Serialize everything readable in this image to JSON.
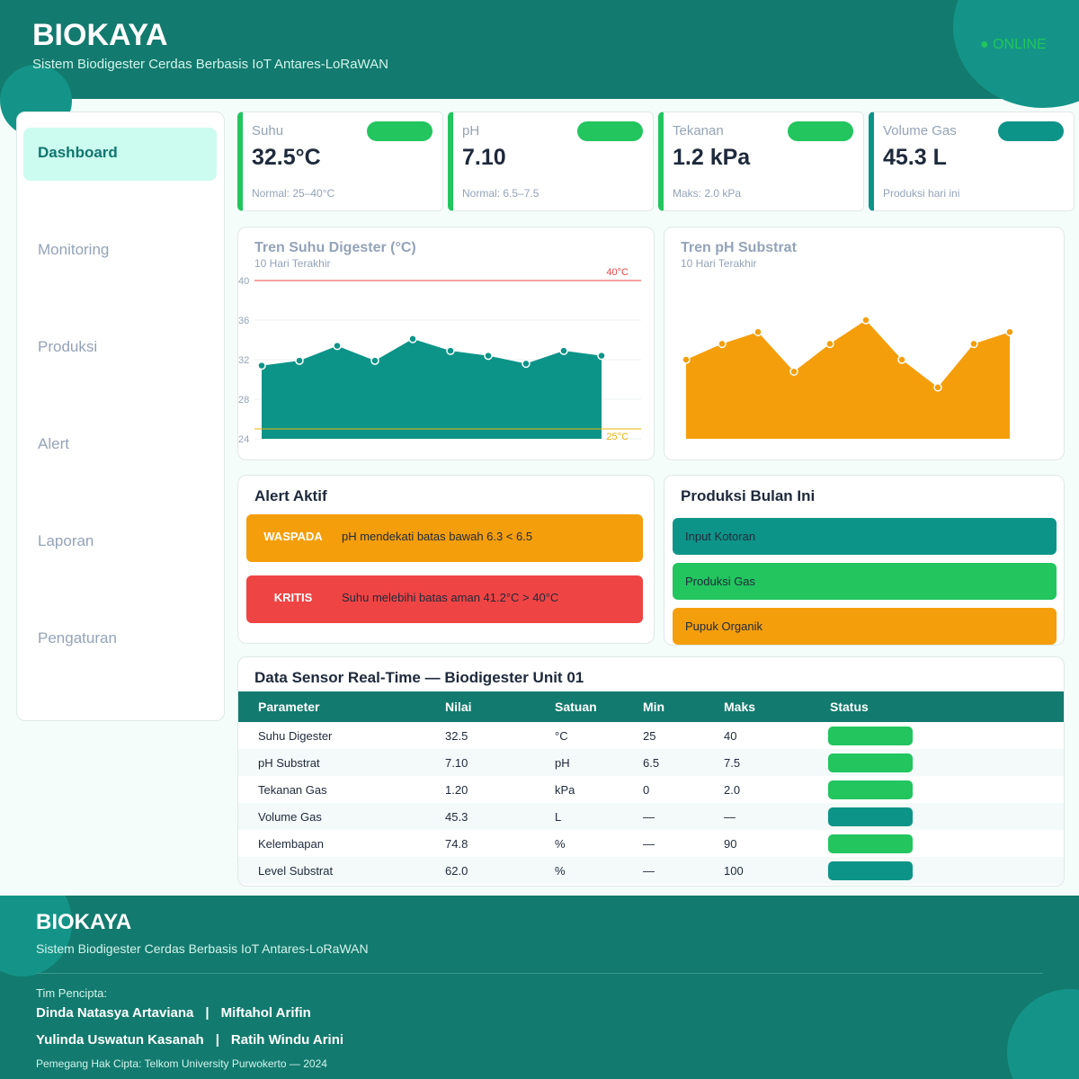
{
  "header": {
    "title": "BIOKAYA",
    "subtitle": "Sistem Biodigester Cerdas Berbasis IoT Antares-LoRaWAN",
    "status": "● ONLINE"
  },
  "sidebar": {
    "items": [
      "Dashboard",
      "Monitoring",
      "Produksi",
      "Alert",
      "Laporan",
      "Pengaturan"
    ]
  },
  "cards": [
    {
      "label": "Suhu",
      "value": "32.5°C",
      "note": "Normal: 25–40°C",
      "color": "#22c55e"
    },
    {
      "label": "pH",
      "value": "7.10",
      "note": "Normal: 6.5–7.5",
      "color": "#22c55e"
    },
    {
      "label": "Tekanan",
      "value": "1.2 kPa",
      "note": "Maks: 2.0 kPa",
      "color": "#22c55e"
    },
    {
      "label": "Volume Gas",
      "value": "45.3 L",
      "note": "Produksi hari ini",
      "color": "#0d9488"
    }
  ],
  "chart_data": [
    {
      "type": "area",
      "title": "Tren Suhu Digester (°C)",
      "subtitle": "10 Hari Terakhir",
      "categories": [
        null,
        null,
        null,
        null,
        null,
        null,
        null,
        null,
        null,
        null
      ],
      "values": [
        31.4,
        31.9,
        33.4,
        31.9,
        34.1,
        32.9,
        32.4,
        31.6,
        32.9,
        32.4
      ],
      "color": "#0d9488",
      "ylim": [
        24,
        40
      ],
      "yticks": [
        24,
        28,
        32,
        36,
        40
      ],
      "grid": true,
      "thresholds": [
        {
          "value": 40,
          "label": "40°C",
          "color": "#ef4444"
        },
        {
          "value": 25,
          "label": "25°C",
          "color": "#eab308"
        }
      ]
    },
    {
      "type": "area",
      "title": "Tren pH Substrat",
      "subtitle": "10 Hari Terakhir",
      "categories": [
        null,
        null,
        null,
        null,
        null,
        null,
        null,
        null,
        null,
        null
      ],
      "values": [
        7.0,
        7.2,
        7.35,
        6.85,
        7.2,
        7.5,
        7.0,
        6.65,
        7.2,
        7.35
      ],
      "color": "#f59e0b",
      "ylim": [
        6,
        8
      ]
    }
  ],
  "alerts": {
    "title": "Alert Aktif",
    "items": [
      {
        "level": "WASPADA",
        "message": "pH mendekati batas bawah  6.3 < 6.5",
        "color": "#f59e0b"
      },
      {
        "level": "KRITIS",
        "message": "Suhu melebihi batas aman  41.2°C > 40°C",
        "color": "#ef4444"
      }
    ]
  },
  "production": {
    "title": "Produksi Bulan Ini",
    "items": [
      {
        "label": "Input Kotoran",
        "color": "#0d9488"
      },
      {
        "label": "Produksi Gas",
        "color": "#22c55e"
      },
      {
        "label": "Pupuk Organik",
        "color": "#f59e0b"
      }
    ]
  },
  "table": {
    "title": "Data Sensor Real-Time — Biodigester Unit 01",
    "columns": [
      "Parameter",
      "Nilai",
      "Satuan",
      "Min",
      "Maks",
      "Status"
    ],
    "rows": [
      [
        "Suhu Digester",
        "32.5",
        "°C",
        "25",
        "40"
      ],
      [
        "pH Substrat",
        "7.10",
        "pH",
        "6.5",
        "7.5"
      ],
      [
        "Tekanan Gas",
        "1.20",
        "kPa",
        "0",
        "2.0"
      ],
      [
        "Volume Gas",
        "45.3",
        "L",
        "—",
        "—"
      ],
      [
        "Kelembapan",
        "74.8",
        "%",
        "—",
        "90"
      ],
      [
        "Level Substrat",
        "62.0",
        "%",
        "—",
        "100"
      ]
    ],
    "status_colors": [
      "#22c55e",
      "#22c55e",
      "#22c55e",
      "#0d9488",
      "#22c55e",
      "#0d9488"
    ]
  },
  "footer": {
    "title": "BIOKAYA",
    "subtitle": "Sistem Biodigester Cerdas Berbasis IoT Antares-LoRaWAN",
    "team_label": "Tim Pencipta:",
    "separator": "|",
    "team": [
      [
        "Dinda Natasya Artaviana",
        "Miftahol Arifin"
      ],
      [
        "Yulinda Uswatun Kasanah",
        "Ratih Windu Arini"
      ]
    ],
    "copyright": "Pemegang Hak Cipta: Telkom University Purwokerto  —  2024"
  }
}
